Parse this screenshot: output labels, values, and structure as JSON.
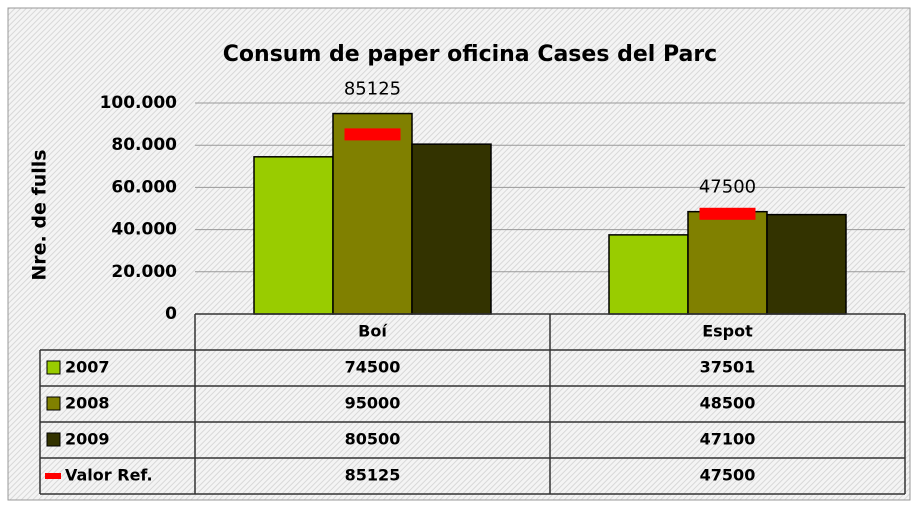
{
  "chart_data": {
    "type": "bar",
    "title": "Consum de paper oficina Cases del Parc",
    "y_label": "Nre. de fulls",
    "categories": [
      "Boí",
      "Espot"
    ],
    "series": [
      {
        "name": "2007",
        "color": "#99cc00",
        "values": [
          74500,
          37501
        ]
      },
      {
        "name": "2008",
        "color": "#808000",
        "values": [
          95000,
          48500
        ]
      },
      {
        "name": "2009",
        "color": "#333300",
        "values": [
          80500,
          47100
        ]
      },
      {
        "name": "Valor Ref.",
        "color": "#ff0000",
        "marker": "dash",
        "values": [
          85125,
          47500
        ]
      }
    ],
    "ylim": [
      0,
      100000
    ],
    "yticks": [
      0,
      {
        "value": 20000,
        "label": "20.000"
      },
      {
        "value": 40000,
        "label": "40.000"
      },
      {
        "value": 60000,
        "label": "60.000"
      },
      {
        "value": 80000,
        "label": "80.000"
      },
      {
        "value": 100000,
        "label": "100.000"
      }
    ],
    "grid": true,
    "data_table": true
  }
}
